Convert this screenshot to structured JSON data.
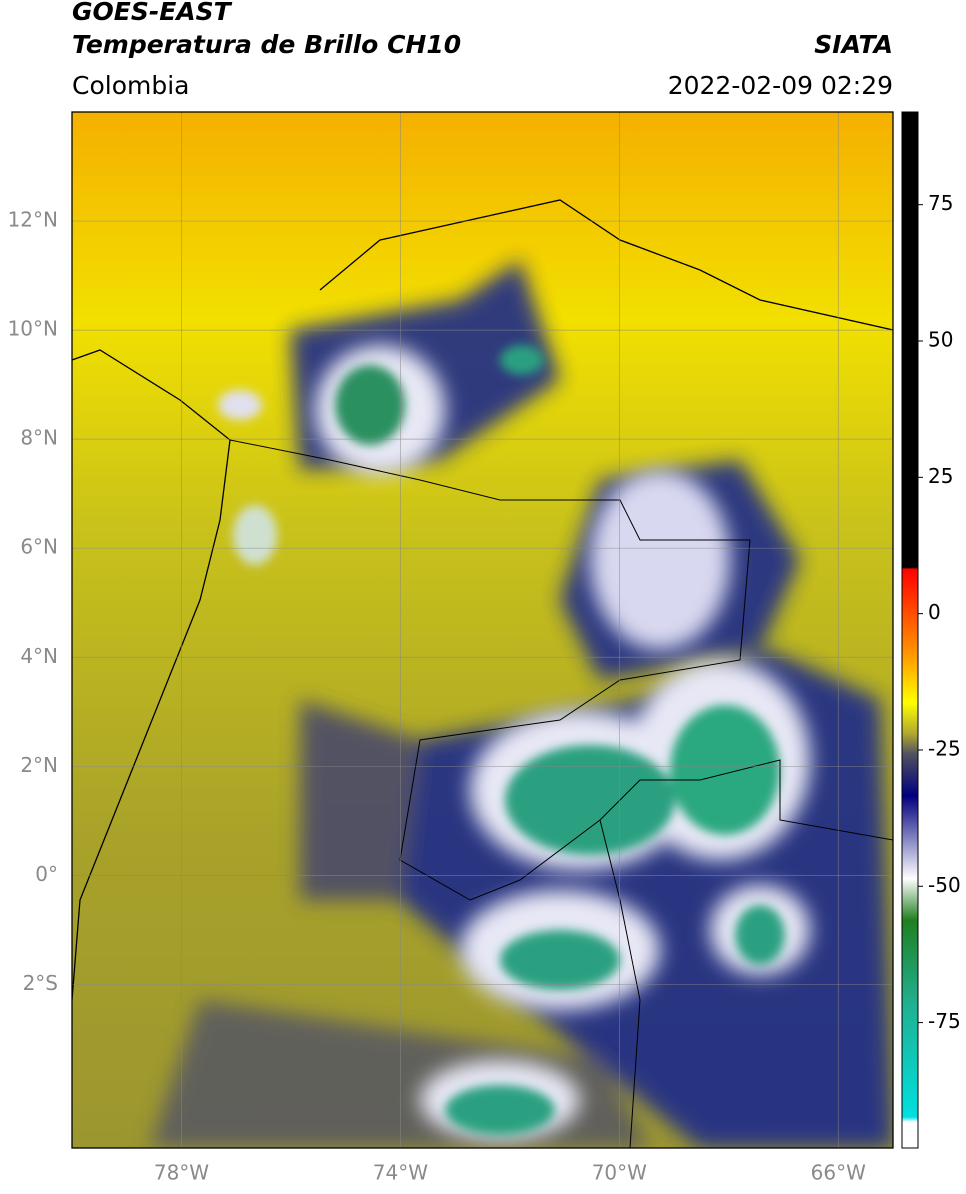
{
  "header": {
    "title": "GOES-EAST",
    "subtitle": "Temperatura de Brillo CH10",
    "source": "SIATA",
    "region": "Colombia",
    "datetime": "2022-02-09 02:29"
  },
  "map": {
    "xlim": [
      -80,
      -65
    ],
    "ylim": [
      -5,
      14
    ],
    "xticks": [
      {
        "value": -78,
        "label": "78°W"
      },
      {
        "value": -74,
        "label": "74°W"
      },
      {
        "value": -70,
        "label": "70°W"
      },
      {
        "value": -66,
        "label": "66°W"
      }
    ],
    "yticks": [
      {
        "value": 12,
        "label": "12°N"
      },
      {
        "value": 10,
        "label": "10°N"
      },
      {
        "value": 8,
        "label": "8°N"
      },
      {
        "value": 6,
        "label": "6°N"
      },
      {
        "value": 4,
        "label": "4°N"
      },
      {
        "value": 2,
        "label": "2°N"
      },
      {
        "value": 0,
        "label": "0°"
      },
      {
        "value": -2,
        "label": "2°S"
      }
    ],
    "grid": true
  },
  "colorbar": {
    "lim": [
      -98,
      92
    ],
    "ticks": [
      75,
      50,
      25,
      0,
      -25,
      -50,
      -75
    ]
  }
}
